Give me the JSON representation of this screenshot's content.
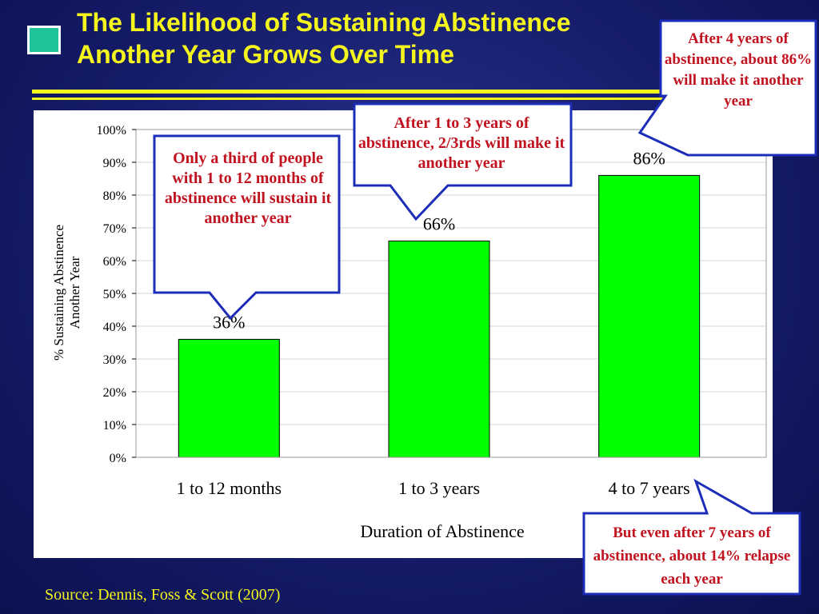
{
  "title": {
    "line1": "The Likelihood of Sustaining Abstinence",
    "line2": "Another Year Grows Over Time"
  },
  "source": "Source: Dennis, Foss & Scott (2007)",
  "callouts": {
    "months": "Only a third of people with 1 to 12 months of abstinence will sustain it another year",
    "years13": "After 1 to 3 years of abstinence, 2/3rds will make it another year",
    "years4": "After 4 years of abstinence, about 86% will make it another year",
    "relapse": "But even after 7 years of abstinence, about 14% relapse each year"
  },
  "colors": {
    "background": "#151c6a",
    "title": "#f5f51e",
    "bar": "#00ff00",
    "callout_border": "#1c2db8",
    "callout_text": "#c1121f"
  },
  "chart_data": {
    "type": "bar",
    "categories": [
      "1 to 12 months",
      "1 to 3 years",
      "4 to 7 years"
    ],
    "values": [
      36,
      66,
      86
    ],
    "data_labels": [
      "36%",
      "66%",
      "86%"
    ],
    "xlabel": "Duration of Abstinence",
    "ylabel_lines": [
      "% Sustaining Abstinence",
      "Another Year"
    ],
    "ylim": [
      0,
      100
    ],
    "yticks": [
      "0%",
      "10%",
      "20%",
      "30%",
      "40%",
      "50%",
      "60%",
      "70%",
      "80%",
      "90%",
      "100%"
    ],
    "grid": true
  }
}
